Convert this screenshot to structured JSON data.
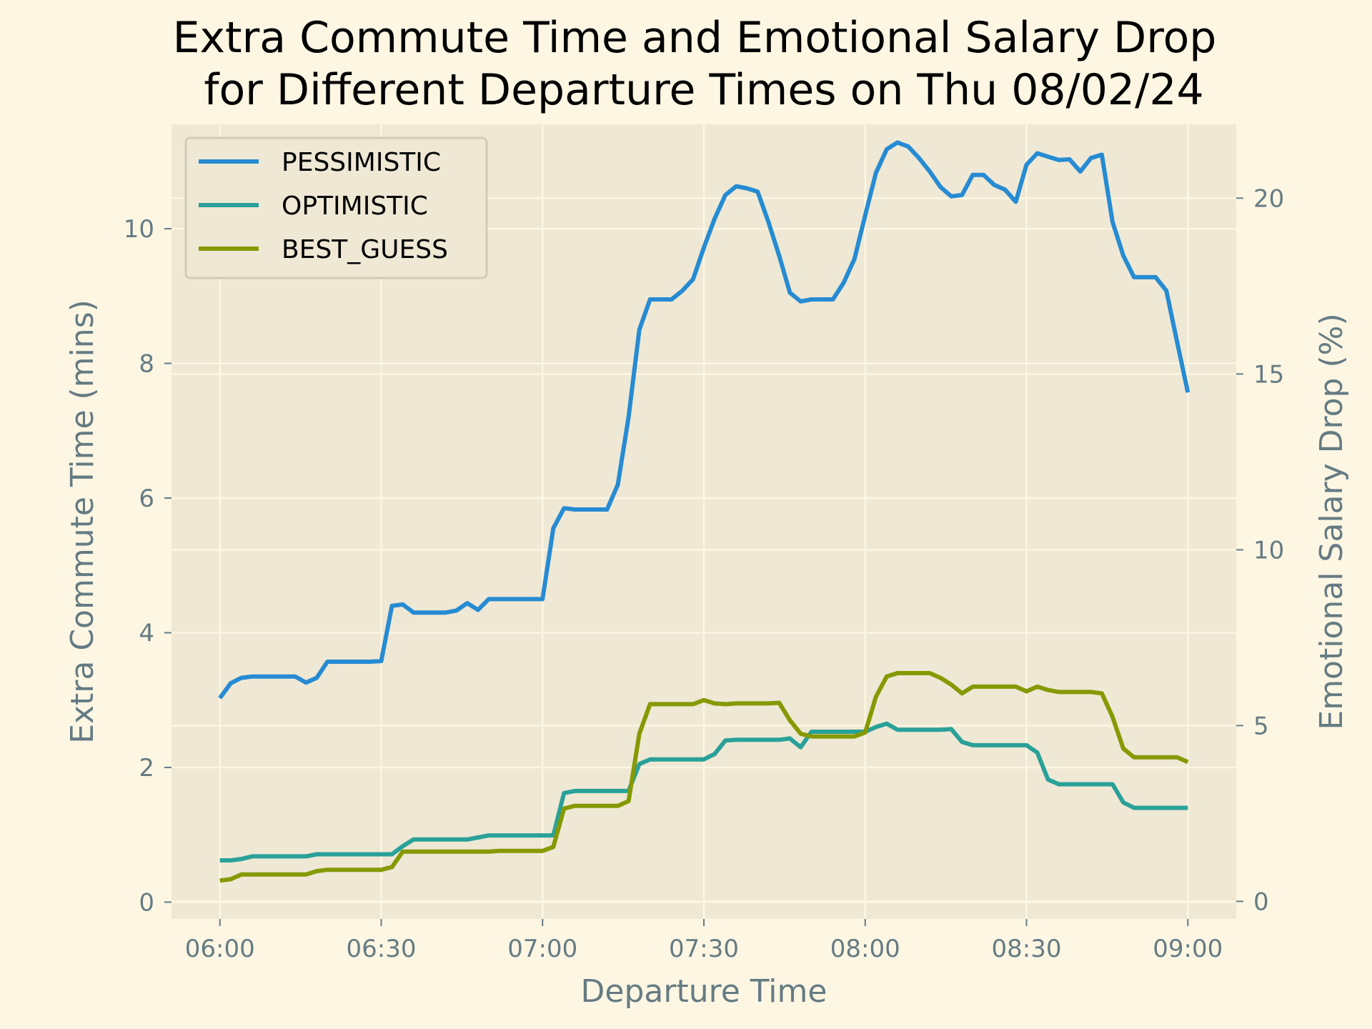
{
  "chart_data": {
    "type": "line",
    "title_line1": "Extra Commute Time and Emotional Salary Drop",
    "title_line2": "for Different Departure Times on Thu 08/02/24",
    "xlabel": "Departure Time",
    "ylabel_left": "Extra Commute Time (mins)",
    "ylabel_right": "Emotional Salary Drop (%)",
    "x_ticks": [
      "06:00",
      "06:30",
      "07:00",
      "07:30",
      "08:00",
      "08:30",
      "09:00"
    ],
    "x_tick_minutes": [
      0,
      30,
      60,
      90,
      120,
      150,
      180
    ],
    "xlim_minutes": [
      -9,
      189
    ],
    "ylim_left": [
      -0.25,
      11.55
    ],
    "y_ticks_left": [
      "0",
      "2",
      "4",
      "6",
      "8",
      "10"
    ],
    "ylim_right": [
      -0.5,
      22.1
    ],
    "y_ticks_right": [
      "0",
      "5",
      "10",
      "15",
      "20"
    ],
    "grid": true,
    "legend_position": "top-left",
    "colors": {
      "figure_bg": "#fdf6e3",
      "axes_bg": "#eee8d5",
      "grid": "#fdf6e3",
      "text": "#657b83",
      "tick": "#657b83"
    },
    "series": [
      {
        "name": "PESSIMISTIC",
        "color": "#268bd2",
        "x": [
          "06:00",
          "06:02",
          "06:04",
          "06:06",
          "06:08",
          "06:10",
          "06:12",
          "06:14",
          "06:16",
          "06:18",
          "06:20",
          "06:22",
          "06:24",
          "06:26",
          "06:28",
          "06:30",
          "06:32",
          "06:34",
          "06:36",
          "06:38",
          "06:40",
          "06:42",
          "06:44",
          "06:46",
          "06:48",
          "06:50",
          "06:52",
          "06:54",
          "06:56",
          "06:58",
          "07:00",
          "07:02",
          "07:04",
          "07:06",
          "07:08",
          "07:10",
          "07:12",
          "07:14",
          "07:16",
          "07:18",
          "07:20",
          "07:22",
          "07:24",
          "07:26",
          "07:28",
          "07:30",
          "07:32",
          "07:34",
          "07:36",
          "07:38",
          "07:40",
          "07:42",
          "07:44",
          "07:46",
          "07:48",
          "07:50",
          "07:52",
          "07:54",
          "07:56",
          "07:58",
          "08:00",
          "08:02",
          "08:04",
          "08:06",
          "08:08",
          "08:10",
          "08:12",
          "08:14",
          "08:16",
          "08:18",
          "08:20",
          "08:22",
          "08:24",
          "08:26",
          "08:28",
          "08:30",
          "08:32",
          "08:34",
          "08:36",
          "08:38",
          "08:40",
          "08:42",
          "08:44",
          "08:46",
          "08:48",
          "08:50",
          "08:52",
          "08:54",
          "08:56",
          "08:58",
          "09:00"
        ],
        "values": [
          3.03,
          3.25,
          3.33,
          3.35,
          3.35,
          3.35,
          3.35,
          3.35,
          3.26,
          3.33,
          3.57,
          3.57,
          3.57,
          3.57,
          3.57,
          3.58,
          4.4,
          4.42,
          4.3,
          4.3,
          4.3,
          4.3,
          4.33,
          4.44,
          4.34,
          4.5,
          4.5,
          4.5,
          4.5,
          4.5,
          4.5,
          5.55,
          5.85,
          5.83,
          5.83,
          5.83,
          5.83,
          6.2,
          7.2,
          8.5,
          8.95,
          8.95,
          8.95,
          9.08,
          9.25,
          9.72,
          10.15,
          10.5,
          10.63,
          10.6,
          10.55,
          10.1,
          9.6,
          9.05,
          8.92,
          8.95,
          8.95,
          8.95,
          9.2,
          9.55,
          10.2,
          10.83,
          11.18,
          11.28,
          11.22,
          11.05,
          10.85,
          10.62,
          10.48,
          10.5,
          10.8,
          10.8,
          10.65,
          10.58,
          10.4,
          10.95,
          11.12,
          11.07,
          11.02,
          11.03,
          10.85,
          11.05,
          11.1,
          10.1,
          9.6,
          9.28,
          9.28,
          9.28,
          9.08,
          8.32,
          7.57
        ]
      },
      {
        "name": "OPTIMISTIC",
        "color": "#2aa198",
        "x": [
          "06:00",
          "06:02",
          "06:04",
          "06:06",
          "06:08",
          "06:10",
          "06:12",
          "06:14",
          "06:16",
          "06:18",
          "06:20",
          "06:22",
          "06:24",
          "06:26",
          "06:28",
          "06:30",
          "06:32",
          "06:34",
          "06:36",
          "06:38",
          "06:40",
          "06:42",
          "06:44",
          "06:46",
          "06:48",
          "06:50",
          "06:52",
          "06:54",
          "06:56",
          "06:58",
          "07:00",
          "07:02",
          "07:04",
          "07:06",
          "07:08",
          "07:10",
          "07:12",
          "07:14",
          "07:16",
          "07:18",
          "07:20",
          "07:22",
          "07:24",
          "07:26",
          "07:28",
          "07:30",
          "07:32",
          "07:34",
          "07:36",
          "07:38",
          "07:40",
          "07:42",
          "07:44",
          "07:46",
          "07:48",
          "07:50",
          "07:52",
          "07:54",
          "07:56",
          "07:58",
          "08:00",
          "08:02",
          "08:04",
          "08:06",
          "08:08",
          "08:10",
          "08:12",
          "08:14",
          "08:16",
          "08:18",
          "08:20",
          "08:22",
          "08:24",
          "08:26",
          "08:28",
          "08:30",
          "08:32",
          "08:34",
          "08:36",
          "08:38",
          "08:40",
          "08:42",
          "08:44",
          "08:46",
          "08:48",
          "08:50",
          "08:52",
          "08:54",
          "08:56",
          "08:58",
          "09:00"
        ],
        "values": [
          0.62,
          0.62,
          0.64,
          0.68,
          0.68,
          0.68,
          0.68,
          0.68,
          0.68,
          0.71,
          0.71,
          0.71,
          0.71,
          0.71,
          0.71,
          0.71,
          0.71,
          0.83,
          0.93,
          0.93,
          0.93,
          0.93,
          0.93,
          0.93,
          0.96,
          0.99,
          0.99,
          0.99,
          0.99,
          0.99,
          0.99,
          0.99,
          1.62,
          1.65,
          1.65,
          1.65,
          1.65,
          1.65,
          1.65,
          2.05,
          2.12,
          2.12,
          2.12,
          2.12,
          2.12,
          2.12,
          2.2,
          2.4,
          2.41,
          2.41,
          2.41,
          2.41,
          2.41,
          2.43,
          2.3,
          2.53,
          2.53,
          2.53,
          2.53,
          2.53,
          2.53,
          2.6,
          2.65,
          2.56,
          2.56,
          2.56,
          2.56,
          2.56,
          2.57,
          2.38,
          2.33,
          2.33,
          2.33,
          2.33,
          2.33,
          2.33,
          2.22,
          1.82,
          1.75,
          1.75,
          1.75,
          1.75,
          1.75,
          1.75,
          1.48,
          1.4,
          1.4,
          1.4,
          1.4,
          1.4,
          1.4
        ]
      },
      {
        "name": "BEST_GUESS",
        "color": "#859900",
        "x": [
          "06:00",
          "06:02",
          "06:04",
          "06:06",
          "06:08",
          "06:10",
          "06:12",
          "06:14",
          "06:16",
          "06:18",
          "06:20",
          "06:22",
          "06:24",
          "06:26",
          "06:28",
          "06:30",
          "06:32",
          "06:34",
          "06:36",
          "06:38",
          "06:40",
          "06:42",
          "06:44",
          "06:46",
          "06:48",
          "06:50",
          "06:52",
          "06:54",
          "06:56",
          "06:58",
          "07:00",
          "07:02",
          "07:04",
          "07:06",
          "07:08",
          "07:10",
          "07:12",
          "07:14",
          "07:16",
          "07:18",
          "07:20",
          "07:22",
          "07:24",
          "07:26",
          "07:28",
          "07:30",
          "07:32",
          "07:34",
          "07:36",
          "07:38",
          "07:40",
          "07:42",
          "07:44",
          "07:46",
          "07:48",
          "07:50",
          "07:52",
          "07:54",
          "07:56",
          "07:58",
          "08:00",
          "08:02",
          "08:04",
          "08:06",
          "08:08",
          "08:10",
          "08:12",
          "08:14",
          "08:16",
          "08:18",
          "08:20",
          "08:22",
          "08:24",
          "08:26",
          "08:28",
          "08:30",
          "08:32",
          "08:34",
          "08:36",
          "08:38",
          "08:40",
          "08:42",
          "08:44",
          "08:46",
          "08:48",
          "08:50",
          "08:52",
          "08:54",
          "08:56",
          "08:58",
          "09:00"
        ],
        "values": [
          0.32,
          0.34,
          0.41,
          0.41,
          0.41,
          0.41,
          0.41,
          0.41,
          0.41,
          0.46,
          0.48,
          0.48,
          0.48,
          0.48,
          0.48,
          0.48,
          0.52,
          0.75,
          0.75,
          0.75,
          0.75,
          0.75,
          0.75,
          0.75,
          0.75,
          0.75,
          0.76,
          0.76,
          0.76,
          0.76,
          0.76,
          0.82,
          1.39,
          1.43,
          1.43,
          1.43,
          1.43,
          1.43,
          1.5,
          2.5,
          2.94,
          2.94,
          2.94,
          2.94,
          2.94,
          3.0,
          2.95,
          2.94,
          2.95,
          2.95,
          2.95,
          2.95,
          2.96,
          2.7,
          2.5,
          2.46,
          2.46,
          2.46,
          2.46,
          2.46,
          2.52,
          3.05,
          3.35,
          3.4,
          3.4,
          3.4,
          3.4,
          3.33,
          3.23,
          3.1,
          3.2,
          3.2,
          3.2,
          3.2,
          3.2,
          3.13,
          3.2,
          3.15,
          3.12,
          3.12,
          3.12,
          3.12,
          3.1,
          2.75,
          2.28,
          2.15,
          2.15,
          2.15,
          2.15,
          2.15,
          2.08
        ]
      }
    ]
  }
}
